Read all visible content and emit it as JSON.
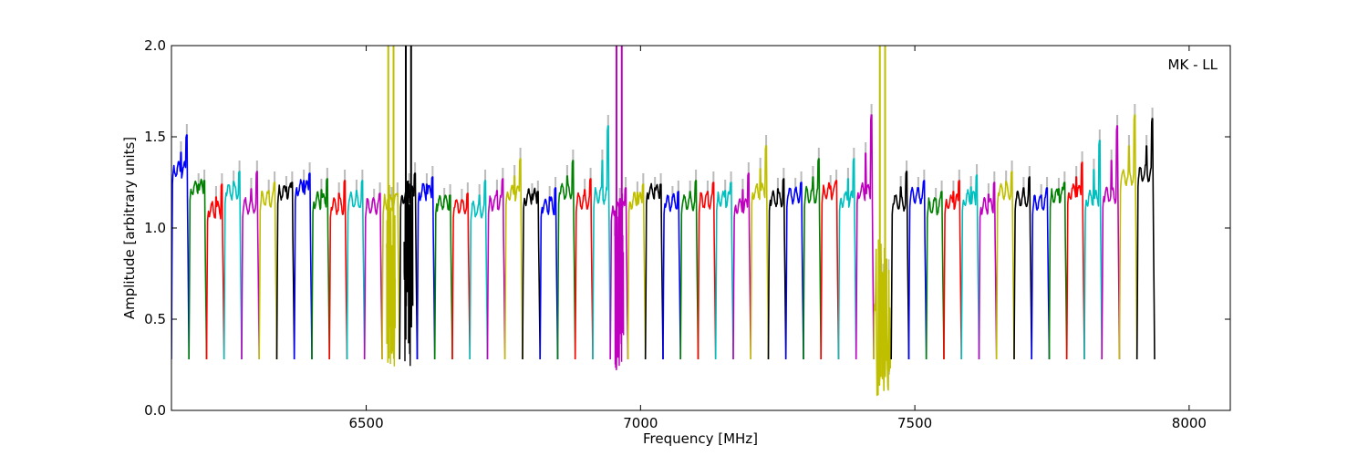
{
  "chart_data": {
    "type": "line",
    "title": "",
    "xlabel": "Frequency [MHz]",
    "ylabel": "Amplitude [arbitrary units]",
    "annotation": "MK - LL",
    "xlim": [
      6145,
      8075
    ],
    "ylim": [
      0.0,
      2.0
    ],
    "xticks": [
      6500,
      7000,
      7500,
      8000
    ],
    "xtick_labels": [
      "6500",
      "7000",
      "7500",
      "8000"
    ],
    "yticks": [
      0.0,
      0.5,
      1.0,
      1.5,
      2.0
    ],
    "ytick_labels": [
      "0.0",
      "0.5",
      "1.0",
      "1.5",
      "2.0"
    ],
    "grid": false,
    "legend": "none",
    "color_cycle": [
      "#0000ff",
      "#008000",
      "#ff0000",
      "#00bfbf",
      "#bf00bf",
      "#bfbf00",
      "#000000"
    ],
    "ghost_color": "#bbbbbb",
    "channel_width_mhz": 32,
    "channel_start_mhz": 6145,
    "channels": [
      {
        "level": 1.32,
        "peak": 1.51
      },
      {
        "level": 1.22,
        "peak": 1.26
      },
      {
        "level": 1.1,
        "peak": 1.24
      },
      {
        "level": 1.2,
        "peak": 1.31
      },
      {
        "level": 1.12,
        "peak": 1.31
      },
      {
        "level": 1.16,
        "peak": 1.25
      },
      {
        "level": 1.2,
        "peak": 1.25
      },
      {
        "level": 1.22,
        "peak": 1.3
      },
      {
        "level": 1.15,
        "peak": 1.27
      },
      {
        "level": 1.12,
        "peak": 1.26
      },
      {
        "level": 1.15,
        "peak": 1.26
      },
      {
        "level": 1.12,
        "peak": 1.19
      },
      {
        "level": 1.14,
        "peak": 1.19,
        "spike": 2.0
      },
      {
        "level": 1.18,
        "peak": 1.3,
        "spike": 2.0
      },
      {
        "level": 1.2,
        "peak": 1.28
      },
      {
        "level": 1.14,
        "peak": 1.18
      },
      {
        "level": 1.12,
        "peak": 1.19
      },
      {
        "level": 1.1,
        "peak": 1.26
      },
      {
        "level": 1.14,
        "peak": 1.27
      },
      {
        "level": 1.19,
        "peak": 1.38
      },
      {
        "level": 1.17,
        "peak": 1.2
      },
      {
        "level": 1.12,
        "peak": 1.22
      },
      {
        "level": 1.2,
        "peak": 1.37
      },
      {
        "level": 1.15,
        "peak": 1.27
      },
      {
        "level": 1.18,
        "peak": 1.56
      },
      {
        "level": 1.1,
        "peak": 1.22,
        "spike": 2.0
      },
      {
        "level": 1.15,
        "peak": 1.24
      },
      {
        "level": 1.2,
        "peak": 1.24
      },
      {
        "level": 1.14,
        "peak": 1.2
      },
      {
        "level": 1.14,
        "peak": 1.26
      },
      {
        "level": 1.15,
        "peak": 1.25
      },
      {
        "level": 1.16,
        "peak": 1.25
      },
      {
        "level": 1.12,
        "peak": 1.3
      },
      {
        "level": 1.2,
        "peak": 1.45
      },
      {
        "level": 1.16,
        "peak": 1.27
      },
      {
        "level": 1.18,
        "peak": 1.25
      },
      {
        "level": 1.18,
        "peak": 1.38
      },
      {
        "level": 1.2,
        "peak": 1.26
      },
      {
        "level": 1.16,
        "peak": 1.38
      },
      {
        "level": 1.2,
        "peak": 1.62
      },
      {
        "level": 0.8,
        "peak": 1.0,
        "spike": 2.0
      },
      {
        "level": 1.14,
        "peak": 1.31
      },
      {
        "level": 1.18,
        "peak": 1.26
      },
      {
        "level": 1.12,
        "peak": 1.2
      },
      {
        "level": 1.14,
        "peak": 1.26
      },
      {
        "level": 1.16,
        "peak": 1.29
      },
      {
        "level": 1.12,
        "peak": 1.25
      },
      {
        "level": 1.2,
        "peak": 1.31
      },
      {
        "level": 1.16,
        "peak": 1.28
      },
      {
        "level": 1.14,
        "peak": 1.22
      },
      {
        "level": 1.18,
        "peak": 1.25
      },
      {
        "level": 1.2,
        "peak": 1.36
      },
      {
        "level": 1.16,
        "peak": 1.48
      },
      {
        "level": 1.18,
        "peak": 1.56
      },
      {
        "level": 1.28,
        "peak": 1.62
      },
      {
        "level": 1.3,
        "peak": 1.6
      }
    ]
  }
}
